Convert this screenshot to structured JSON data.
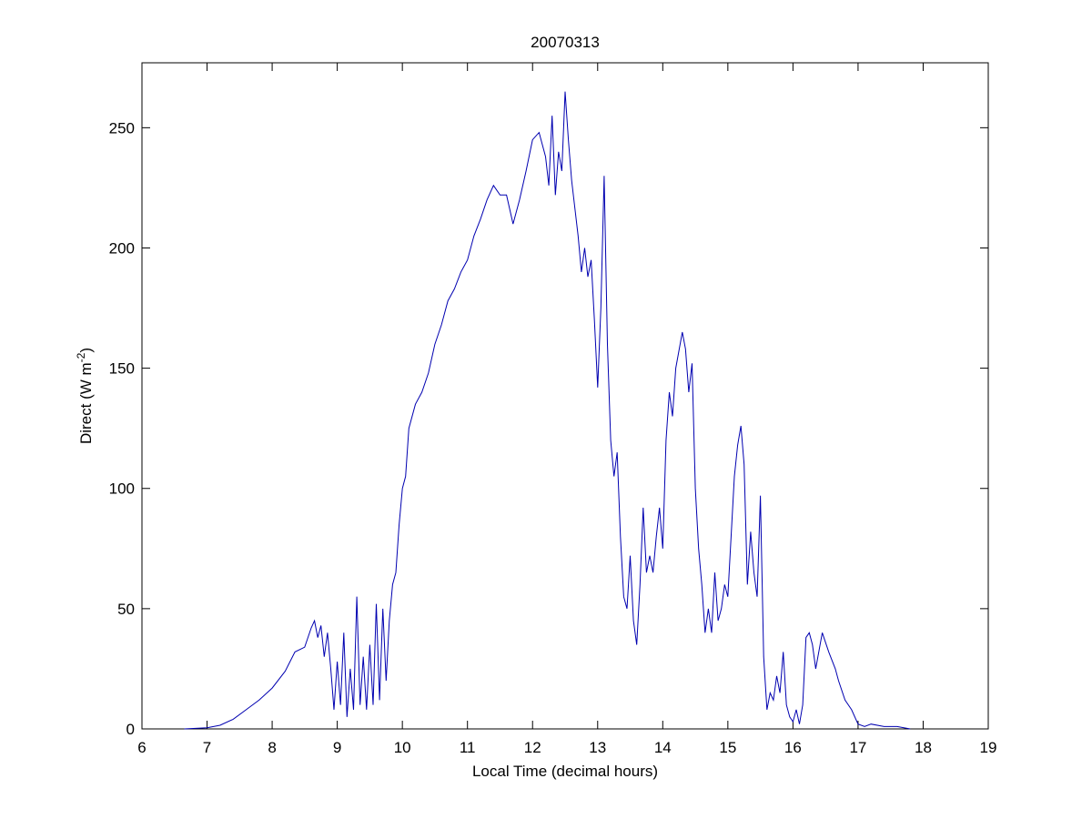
{
  "chart_data": {
    "type": "line",
    "title": "20070313",
    "xlabel": "Local Time (decimal hours)",
    "ylabel_parts": [
      "Direct (W m",
      "-2",
      ")"
    ],
    "xlim": [
      6,
      19
    ],
    "xticks": [
      6,
      7,
      8,
      9,
      10,
      11,
      12,
      13,
      14,
      15,
      16,
      17,
      18,
      19
    ],
    "ylim": [
      0,
      277
    ],
    "yticks": [
      0,
      50,
      100,
      150,
      200,
      250
    ],
    "series": [
      {
        "color": "#0000b0",
        "x": [
          6.65,
          7.0,
          7.2,
          7.4,
          7.6,
          7.8,
          8.0,
          8.2,
          8.35,
          8.5,
          8.6,
          8.65,
          8.7,
          8.75,
          8.8,
          8.85,
          8.9,
          8.95,
          9.0,
          9.05,
          9.1,
          9.15,
          9.2,
          9.25,
          9.3,
          9.35,
          9.4,
          9.45,
          9.5,
          9.55,
          9.6,
          9.65,
          9.7,
          9.75,
          9.8,
          9.85,
          9.9,
          9.95,
          10.0,
          10.05,
          10.1,
          10.2,
          10.3,
          10.4,
          10.5,
          10.6,
          10.7,
          10.8,
          10.9,
          11.0,
          11.1,
          11.2,
          11.3,
          11.4,
          11.5,
          11.6,
          11.7,
          11.8,
          11.9,
          12.0,
          12.1,
          12.2,
          12.25,
          12.3,
          12.35,
          12.4,
          12.45,
          12.5,
          12.55,
          12.6,
          12.7,
          12.75,
          12.8,
          12.85,
          12.9,
          12.95,
          13.0,
          13.05,
          13.1,
          13.15,
          13.2,
          13.25,
          13.3,
          13.35,
          13.4,
          13.45,
          13.5,
          13.55,
          13.6,
          13.65,
          13.7,
          13.75,
          13.8,
          13.85,
          13.9,
          13.95,
          14.0,
          14.05,
          14.1,
          14.15,
          14.2,
          14.3,
          14.35,
          14.4,
          14.45,
          14.5,
          14.55,
          14.6,
          14.65,
          14.7,
          14.75,
          14.8,
          14.85,
          14.9,
          14.95,
          15.0,
          15.05,
          15.1,
          15.15,
          15.2,
          15.25,
          15.3,
          15.35,
          15.4,
          15.45,
          15.5,
          15.55,
          15.6,
          15.65,
          15.7,
          15.75,
          15.8,
          15.85,
          15.9,
          15.95,
          16.0,
          16.05,
          16.1,
          16.15,
          16.2,
          16.25,
          16.3,
          16.35,
          16.45,
          16.55,
          16.65,
          16.7,
          16.8,
          16.9,
          17.0,
          17.1,
          17.2,
          17.4,
          17.6,
          17.8
        ],
        "values": [
          0,
          0.5,
          1.5,
          4,
          8,
          12,
          17,
          24,
          32,
          34,
          42,
          45,
          38,
          43,
          30,
          40,
          25,
          8,
          28,
          10,
          40,
          5,
          25,
          8,
          55,
          10,
          30,
          8,
          35,
          10,
          52,
          12,
          50,
          20,
          45,
          60,
          65,
          85,
          100,
          105,
          125,
          135,
          140,
          148,
          160,
          168,
          178,
          183,
          190,
          195,
          205,
          212,
          220,
          226,
          222,
          222,
          210,
          220,
          232,
          245,
          248,
          238,
          226,
          255,
          222,
          240,
          232,
          265,
          245,
          228,
          205,
          190,
          200,
          188,
          195,
          170,
          142,
          175,
          230,
          160,
          120,
          105,
          115,
          80,
          55,
          50,
          72,
          45,
          35,
          60,
          92,
          65,
          72,
          65,
          80,
          92,
          75,
          120,
          140,
          130,
          150,
          165,
          158,
          140,
          152,
          100,
          75,
          60,
          40,
          50,
          40,
          65,
          45,
          50,
          60,
          55,
          80,
          105,
          118,
          126,
          110,
          60,
          82,
          65,
          55,
          97,
          30,
          8,
          15,
          12,
          22,
          15,
          32,
          10,
          5,
          3,
          8,
          2,
          10,
          38,
          40,
          35,
          25,
          40,
          32,
          25,
          20,
          12,
          8,
          2,
          1,
          2,
          1,
          1,
          0
        ]
      }
    ]
  }
}
